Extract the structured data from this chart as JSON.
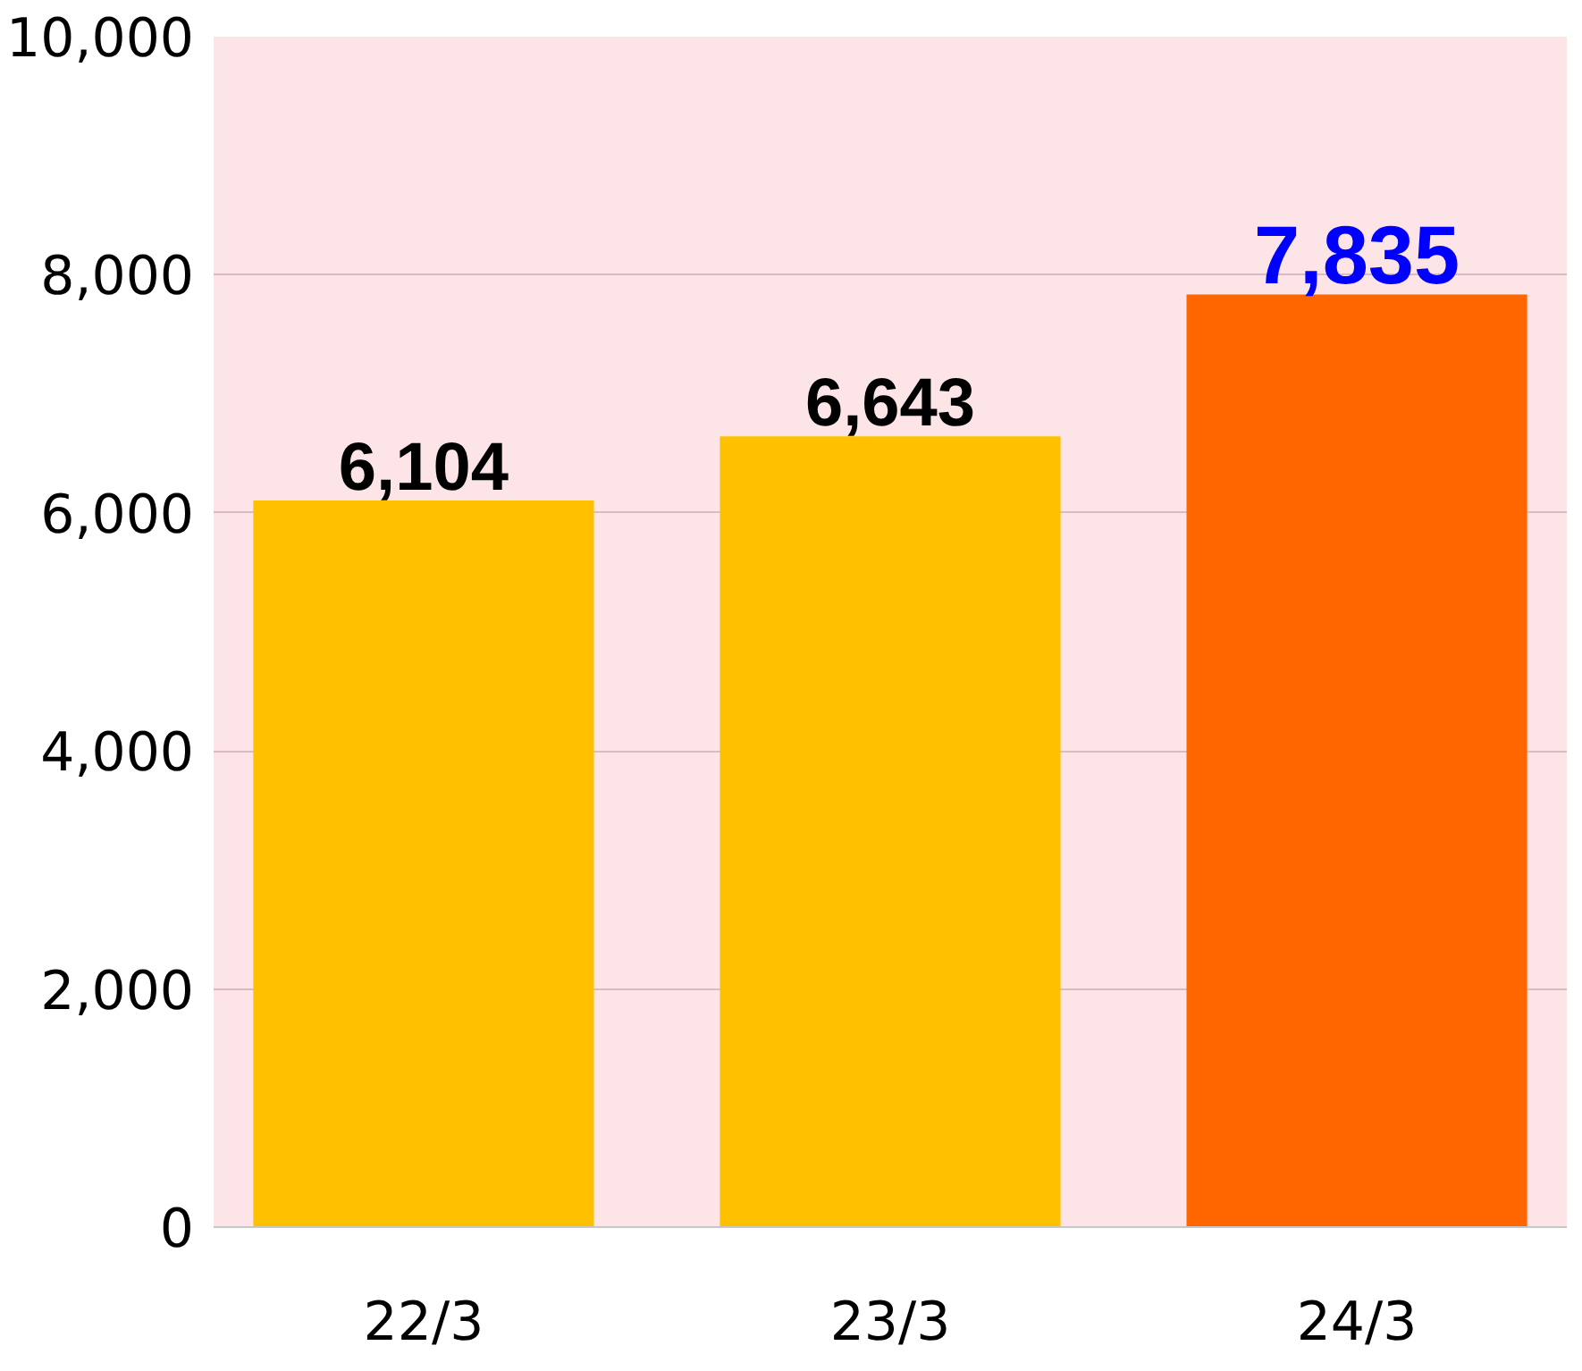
{
  "chart_data": {
    "type": "bar",
    "categories": [
      "22/3",
      "23/3",
      "24/3"
    ],
    "values": [
      6104,
      6643,
      7835
    ],
    "colors": [
      "#ffc000",
      "#ffc000",
      "#ff6600"
    ],
    "value_labels": [
      "6,104",
      "6,643",
      "7,835"
    ],
    "ylim": [
      0,
      10000
    ],
    "yticks": [
      {
        "value": 0,
        "label": "0"
      },
      {
        "value": 2000,
        "label": "2,000"
      },
      {
        "value": 4000,
        "label": "4,000"
      },
      {
        "value": 6000,
        "label": "6,000"
      },
      {
        "value": 8000,
        "label": "8,000"
      },
      {
        "value": 10000,
        "label": "10,000"
      }
    ],
    "grid": "y"
  }
}
